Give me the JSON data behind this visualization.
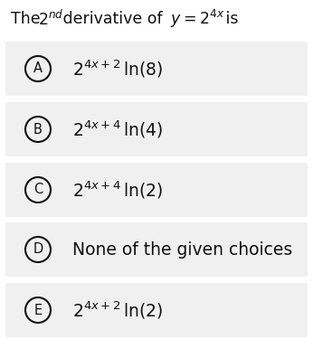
{
  "background_color": "#ffffff",
  "option_bg_color": "#f0f0f0",
  "options": [
    {
      "label": "A",
      "math": "$2^{4x+2}\\,\\mathrm{ln}(8)$"
    },
    {
      "label": "B",
      "math": "$2^{4x+4}\\,\\mathrm{ln}(4)$"
    },
    {
      "label": "C",
      "math": "$2^{4x+4}\\,\\mathrm{ln}(2)$"
    },
    {
      "label": "D",
      "text": "None of the given choices"
    },
    {
      "label": "E",
      "math": "$2^{4x+2}\\,\\mathrm{ln}(2)$"
    }
  ],
  "circle_color": "#111111",
  "text_color": "#111111",
  "font_size_title": 12.5,
  "font_size_options": 13.5,
  "font_size_circle": 10.5
}
